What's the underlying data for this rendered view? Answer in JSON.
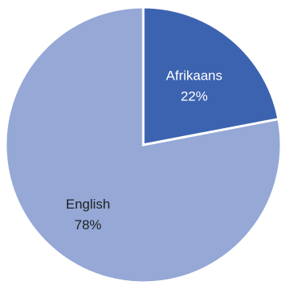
{
  "chart_data": {
    "type": "pie",
    "title": "",
    "slices": [
      {
        "label": "Afrikaans",
        "value": 22,
        "value_label": "22%",
        "color": "#3c63b0"
      },
      {
        "label": "English",
        "value": 78,
        "value_label": "78%",
        "color": "#95a8d6"
      }
    ],
    "start_angle_deg": 0,
    "direction": "clockwise",
    "slice_border_color": "#ffffff",
    "legend": "none"
  }
}
